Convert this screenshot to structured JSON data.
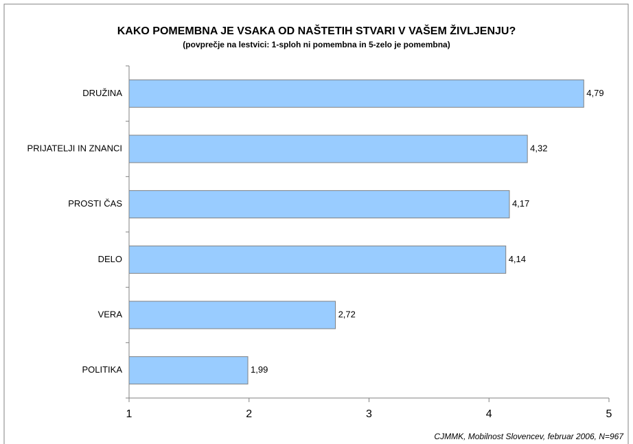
{
  "chart_data": {
    "type": "bar",
    "orientation": "horizontal",
    "title": "KAKO POMEMBNA JE VSAKA OD NAŠTETIH STVARI V VAŠEM ŽIVLJENJU?",
    "subtitle": "(povprečje na lestvici: 1-sploh ni pomembna in 5-zelo je pomembna)",
    "categories": [
      "DRUŽINA",
      "PRIJATELJI IN ZNANCI",
      "PROSTI ČAS",
      "DELO",
      "VERA",
      "POLITIKA"
    ],
    "values": [
      4.79,
      4.32,
      4.17,
      4.14,
      2.72,
      1.99
    ],
    "value_labels": [
      "4,79",
      "4,32",
      "4,17",
      "4,14",
      "2,72",
      "1,99"
    ],
    "color": "#99ccff",
    "xlim": [
      1,
      5
    ],
    "xticks": [
      1,
      2,
      3,
      4,
      5
    ],
    "source": "CJMMK, Mobilnost Slovencev, februar 2006, N=967"
  }
}
